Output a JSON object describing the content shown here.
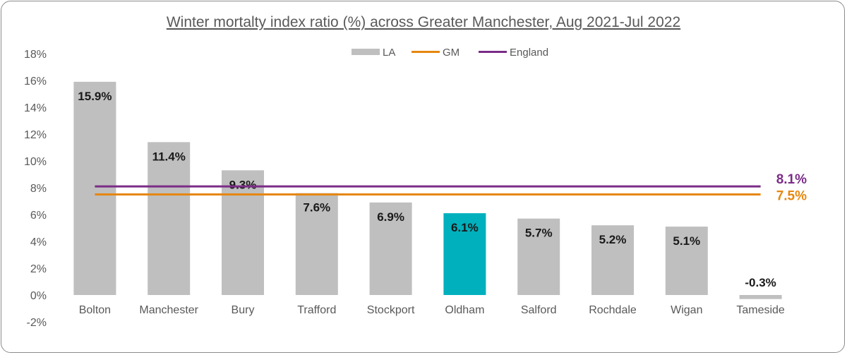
{
  "chart_data": {
    "type": "bar",
    "title": "Winter mortalty index ratio (%) across Greater Manchester, Aug 2021-Jul 2022",
    "categories": [
      "Bolton",
      "Manchester",
      "Bury",
      "Trafford",
      "Stockport",
      "Oldham",
      "Salford",
      "Rochdale",
      "Wigan",
      "Tameside"
    ],
    "series": [
      {
        "name": "LA",
        "values": [
          15.9,
          11.4,
          9.3,
          7.6,
          6.9,
          6.1,
          5.7,
          5.2,
          5.1,
          -0.3
        ],
        "data_labels": [
          "15.9%",
          "11.4%",
          "9.3%",
          "7.6%",
          "6.9%",
          "6.1%",
          "5.7%",
          "5.2%",
          "5.1%",
          "-0.3%"
        ],
        "color": "#bfbfbf",
        "highlight_category": "Oldham",
        "highlight_color": "#00b0bd"
      },
      {
        "name": "GM",
        "value": 7.5,
        "label": "7.5%",
        "color": "#e6870f"
      },
      {
        "name": "England",
        "value": 8.1,
        "label": "8.1%",
        "color": "#7b2c87"
      }
    ],
    "y_ticks": [
      "18%",
      "16%",
      "14%",
      "12%",
      "10%",
      "8%",
      "6%",
      "4%",
      "2%",
      "0%",
      "-2%"
    ],
    "y_tick_values": [
      18,
      16,
      14,
      12,
      10,
      8,
      6,
      4,
      2,
      0,
      -2
    ],
    "ylim": [
      -2,
      18
    ],
    "grid": false,
    "legend_position": "top-center"
  }
}
